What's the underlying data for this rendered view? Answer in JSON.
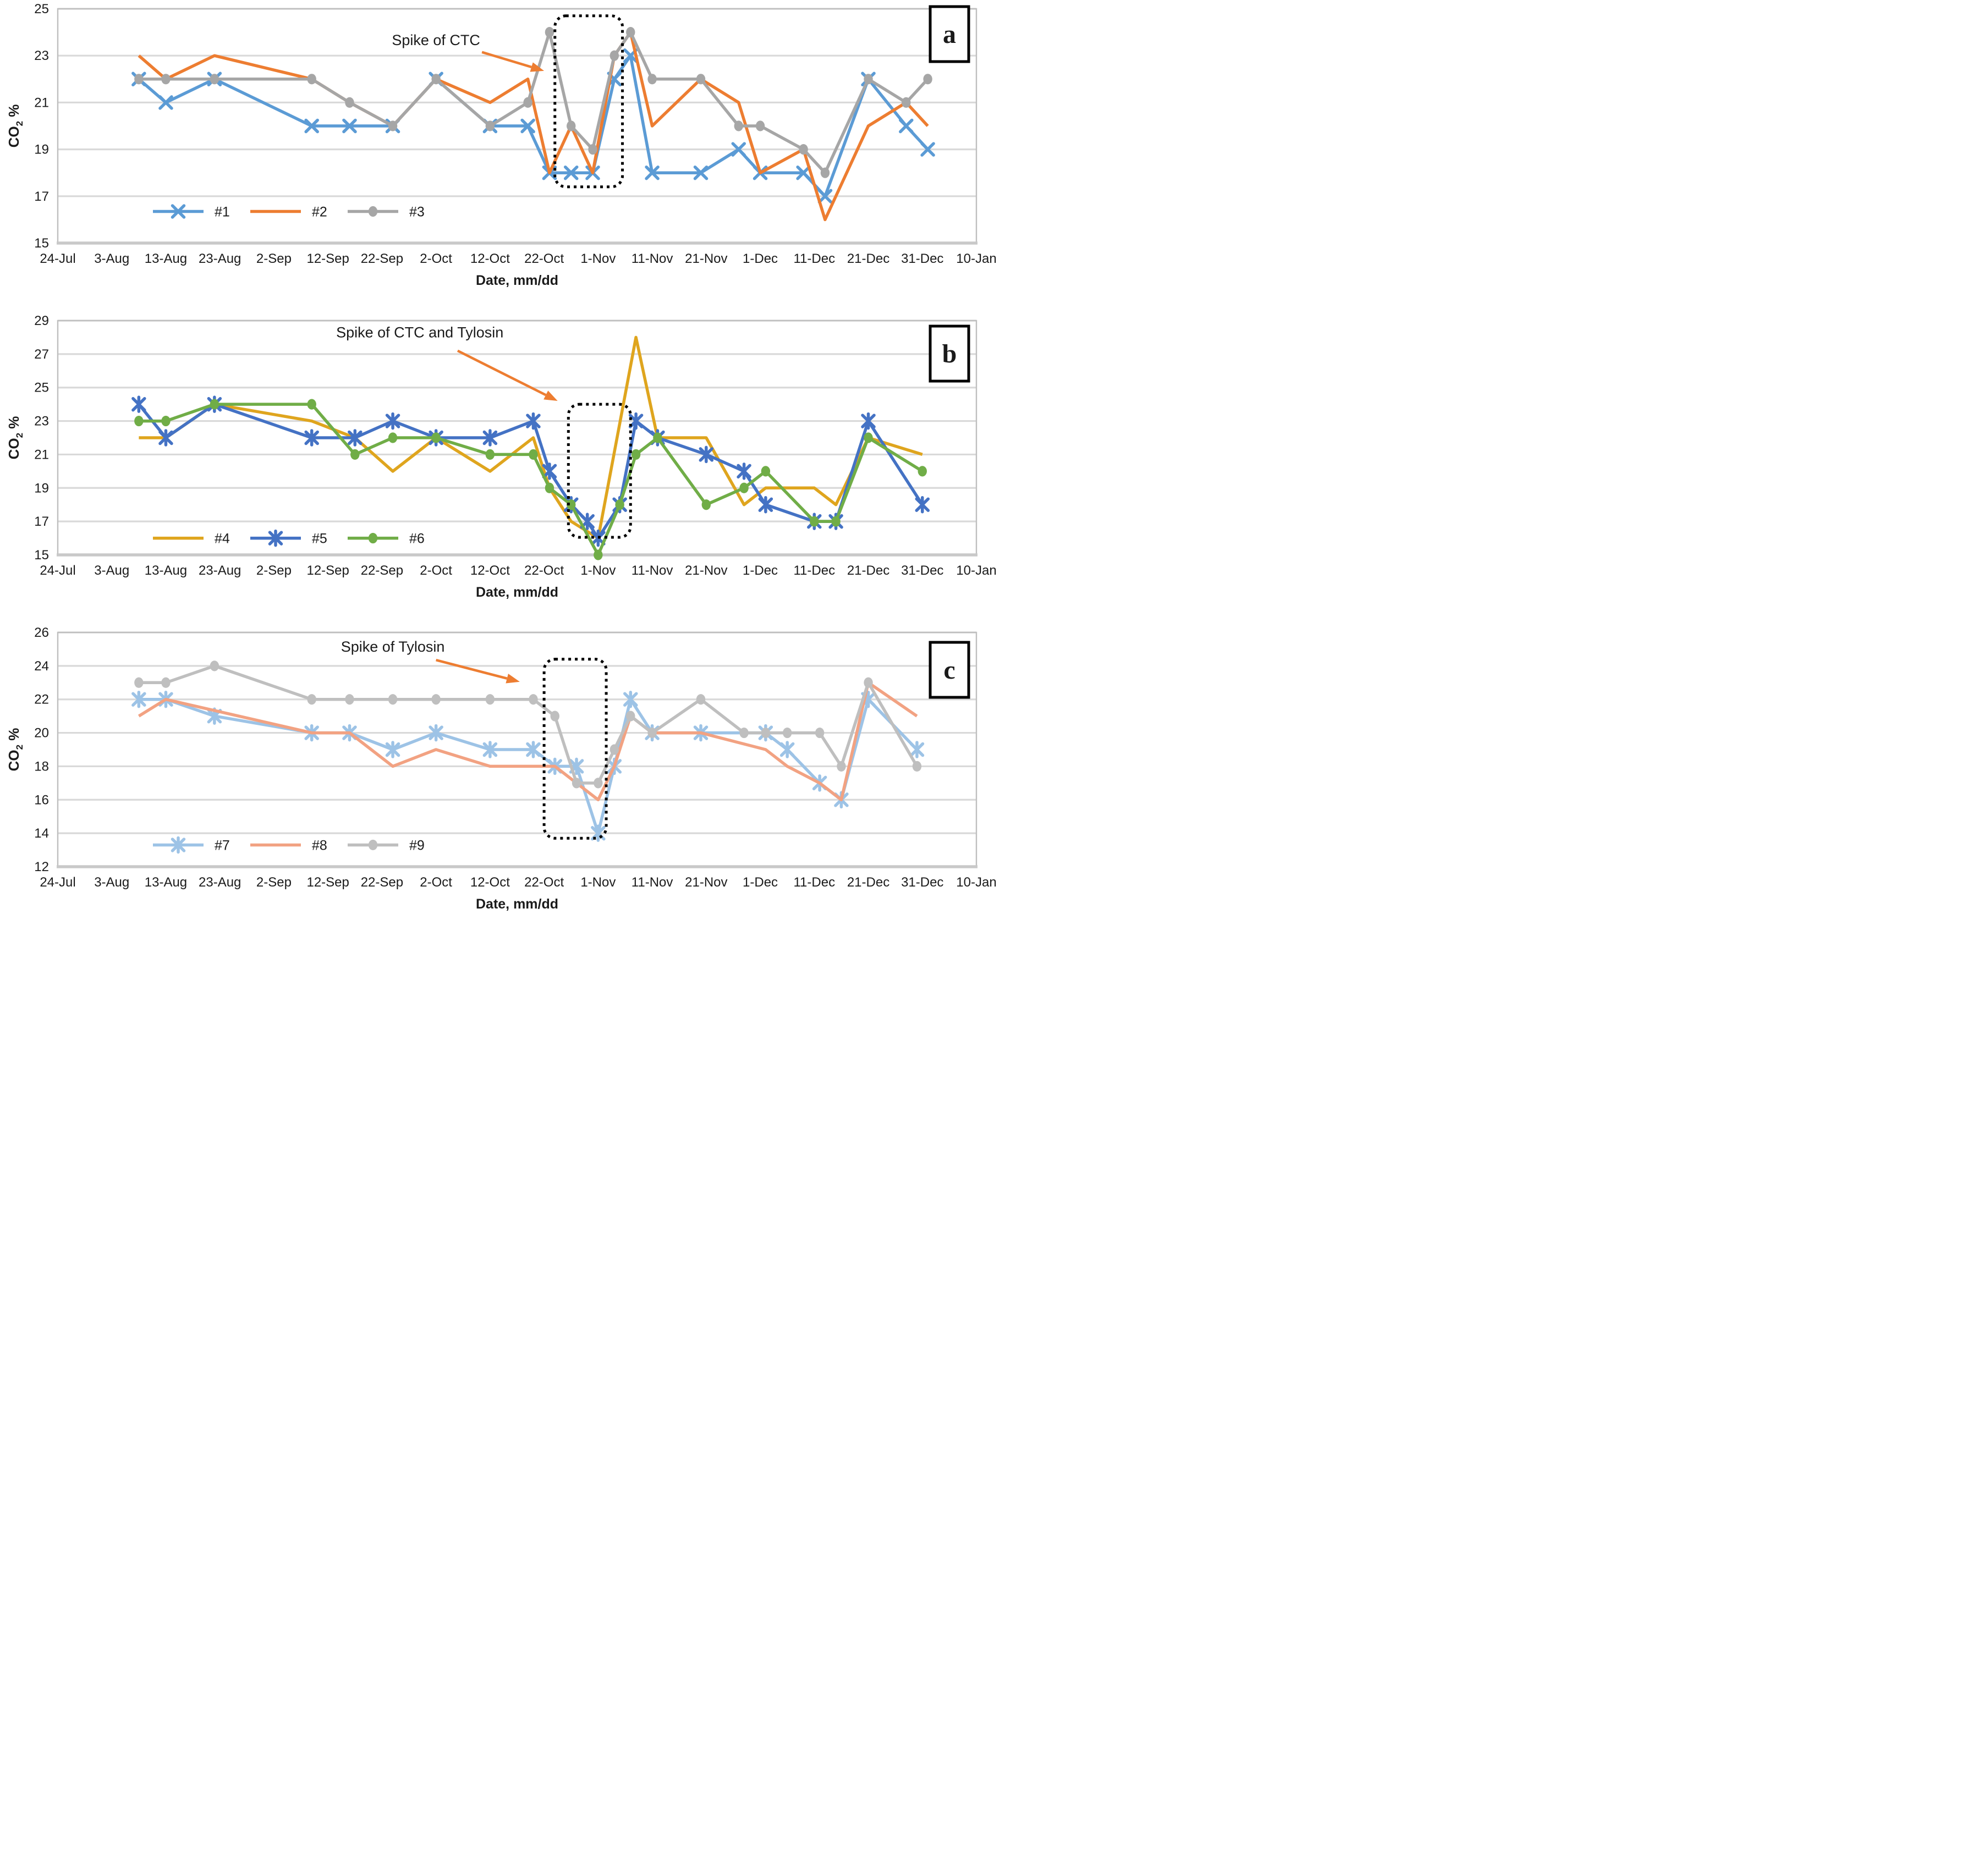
{
  "page": {
    "background": "#FFFFFF"
  },
  "x_axis": {
    "title": "Date, mm/dd",
    "range_days": [
      0,
      170
    ],
    "tick_days": [
      0,
      10,
      20,
      30,
      40,
      50,
      60,
      70,
      80,
      90,
      100,
      110,
      120,
      130,
      140,
      150,
      160,
      170
    ],
    "tick_labels": [
      "24-Jul",
      "3-Aug",
      "13-Aug",
      "23-Aug",
      "2-Sep",
      "12-Sep",
      "22-Sep",
      "2-Oct",
      "12-Oct",
      "22-Oct",
      "1-Nov",
      "11-Nov",
      "21-Nov",
      "1-Dec",
      "11-Dec",
      "21-Dec",
      "31-Dec",
      "10-Jan"
    ]
  },
  "y_axis": {
    "title_main": "CO",
    "title_sub": "2",
    "title_suffix": " %"
  },
  "style": {
    "gridline_color": "#D9D9D9",
    "plot_border_color": "#BFBFBF",
    "bottom_axis_color": "#C9C9C9",
    "text_color": "#1A1A1A",
    "annotation_arrow_color": "#ED7D31",
    "dotted_box_color": "#000000"
  },
  "chart_data": [
    {
      "panel_letter": "a",
      "type": "line",
      "ylim": [
        15,
        25
      ],
      "ytick_step": 2,
      "grid": "horizontal",
      "legend_position": "inside-bottom-left",
      "legend_y_value": 16.35,
      "series": [
        {
          "name": "#1",
          "color": "#5B9BD5",
          "marker": "x",
          "points": [
            [
              15,
              22
            ],
            [
              20,
              21
            ],
            [
              29,
              22
            ],
            [
              47,
              20
            ],
            [
              54,
              20
            ],
            [
              62,
              20
            ],
            [
              70,
              22
            ],
            [
              80,
              20
            ],
            [
              87,
              20
            ],
            [
              91,
              18
            ],
            [
              95,
              18
            ],
            [
              99,
              18
            ],
            [
              103,
              22
            ],
            [
              106,
              23
            ],
            [
              110,
              18
            ],
            [
              119,
              18
            ],
            [
              126,
              19
            ],
            [
              130,
              18
            ],
            [
              138,
              18
            ],
            [
              142,
              17
            ],
            [
              150,
              22
            ],
            [
              157,
              20
            ],
            [
              161,
              19
            ]
          ]
        },
        {
          "name": "#2",
          "color": "#ED7D31",
          "marker": "none",
          "points": [
            [
              15,
              23
            ],
            [
              20,
              22
            ],
            [
              29,
              23
            ],
            [
              47,
              22
            ],
            [
              54,
              21
            ],
            [
              62,
              20
            ],
            [
              70,
              22
            ],
            [
              80,
              21
            ],
            [
              87,
              22
            ],
            [
              91,
              18
            ],
            [
              95,
              20
            ],
            [
              99,
              18
            ],
            [
              103,
              23
            ],
            [
              106,
              24
            ],
            [
              110,
              20
            ],
            [
              119,
              22
            ],
            [
              126,
              21
            ],
            [
              130,
              18
            ],
            [
              138,
              19
            ],
            [
              142,
              16
            ],
            [
              150,
              20
            ],
            [
              157,
              21
            ],
            [
              161,
              20
            ]
          ]
        },
        {
          "name": "#3",
          "color": "#A6A6A6",
          "marker": "circle",
          "points": [
            [
              15,
              22
            ],
            [
              20,
              22
            ],
            [
              29,
              22
            ],
            [
              47,
              22
            ],
            [
              54,
              21
            ],
            [
              62,
              20
            ],
            [
              70,
              22
            ],
            [
              80,
              20
            ],
            [
              87,
              21
            ],
            [
              91,
              24
            ],
            [
              95,
              20
            ],
            [
              99,
              19
            ],
            [
              103,
              23
            ],
            [
              106,
              24
            ],
            [
              110,
              22
            ],
            [
              119,
              22
            ],
            [
              126,
              20
            ],
            [
              130,
              20
            ],
            [
              138,
              19
            ],
            [
              142,
              18
            ],
            [
              150,
              22
            ],
            [
              157,
              21
            ],
            [
              161,
              22
            ]
          ]
        }
      ],
      "annotation": {
        "text": "Spike of CTC",
        "text_at": [
          70,
          23.45
        ],
        "arrow_from": [
          78.5,
          23.15
        ],
        "arrow_to": [
          90,
          22.35
        ],
        "dotted_box": {
          "x1": 92,
          "y1": 17.4,
          "x2": 104.5,
          "y2": 24.7
        }
      }
    },
    {
      "panel_letter": "b",
      "type": "line",
      "ylim": [
        15,
        29
      ],
      "ytick_step": 2,
      "grid": "horizontal",
      "legend_position": "inside-bottom-left",
      "legend_y_value": 16.0,
      "series": [
        {
          "name": "#4",
          "color": "#DFA51E",
          "marker": "none",
          "points": [
            [
              15,
              22
            ],
            [
              20,
              22
            ],
            [
              29,
              24
            ],
            [
              47,
              23
            ],
            [
              55,
              22
            ],
            [
              62,
              20
            ],
            [
              70,
              22
            ],
            [
              80,
              20
            ],
            [
              88,
              22
            ],
            [
              91,
              19
            ],
            [
              95,
              17
            ],
            [
              100,
              16
            ],
            [
              107,
              28
            ],
            [
              111,
              22
            ],
            [
              120,
              22
            ],
            [
              127,
              18
            ],
            [
              131,
              19
            ],
            [
              140,
              19
            ],
            [
              144,
              18
            ],
            [
              150,
              22
            ],
            [
              160,
              21
            ]
          ]
        },
        {
          "name": "#5",
          "color": "#4472C4",
          "marker": "asterisk",
          "points": [
            [
              15,
              24
            ],
            [
              20,
              22
            ],
            [
              29,
              24
            ],
            [
              47,
              22
            ],
            [
              55,
              22
            ],
            [
              62,
              23
            ],
            [
              70,
              22
            ],
            [
              80,
              22
            ],
            [
              88,
              23
            ],
            [
              91,
              20
            ],
            [
              95,
              18
            ],
            [
              98,
              17
            ],
            [
              100,
              16
            ],
            [
              104,
              18
            ],
            [
              107,
              23
            ],
            [
              111,
              22
            ],
            [
              120,
              21
            ],
            [
              127,
              20
            ],
            [
              131,
              18
            ],
            [
              140,
              17
            ],
            [
              144,
              17
            ],
            [
              150,
              23
            ],
            [
              160,
              18
            ]
          ]
        },
        {
          "name": "#6",
          "color": "#70AD47",
          "marker": "circle",
          "points": [
            [
              15,
              23
            ],
            [
              20,
              23
            ],
            [
              29,
              24
            ],
            [
              47,
              24
            ],
            [
              55,
              21
            ],
            [
              62,
              22
            ],
            [
              70,
              22
            ],
            [
              80,
              21
            ],
            [
              88,
              21
            ],
            [
              91,
              19
            ],
            [
              95,
              18
            ],
            [
              100,
              15
            ],
            [
              104,
              18
            ],
            [
              107,
              21
            ],
            [
              111,
              22
            ],
            [
              120,
              18
            ],
            [
              127,
              19
            ],
            [
              131,
              20
            ],
            [
              140,
              17
            ],
            [
              144,
              17
            ],
            [
              150,
              22
            ],
            [
              160,
              20
            ]
          ]
        }
      ],
      "annotation": {
        "text": "Spike of CTC and Tylosin",
        "text_at": [
          67,
          28.0
        ],
        "arrow_from": [
          74,
          27.2
        ],
        "arrow_to": [
          92.5,
          24.2
        ],
        "dotted_box": {
          "x1": 94.5,
          "y1": 16.05,
          "x2": 106,
          "y2": 24.0
        }
      }
    },
    {
      "panel_letter": "c",
      "type": "line",
      "ylim": [
        12,
        26
      ],
      "ytick_step": 2,
      "grid": "horizontal",
      "legend_position": "inside-bottom-left",
      "legend_y_value": 13.3,
      "series": [
        {
          "name": "#7",
          "color": "#9DC3E6",
          "marker": "asterisk",
          "points": [
            [
              15,
              22
            ],
            [
              20,
              22
            ],
            [
              29,
              21
            ],
            [
              47,
              20
            ],
            [
              54,
              20
            ],
            [
              62,
              19
            ],
            [
              70,
              20
            ],
            [
              80,
              19
            ],
            [
              88,
              19
            ],
            [
              92,
              18
            ],
            [
              96,
              18
            ],
            [
              100,
              14
            ],
            [
              103,
              18
            ],
            [
              106,
              22
            ],
            [
              110,
              20
            ],
            [
              119,
              20
            ],
            [
              131,
              20
            ],
            [
              135,
              19
            ],
            [
              141,
              17
            ],
            [
              145,
              16
            ],
            [
              150,
              22
            ],
            [
              159,
              19
            ]
          ]
        },
        {
          "name": "#8",
          "color": "#F2A282",
          "marker": "none",
          "points": [
            [
              15,
              21
            ],
            [
              20,
              22
            ],
            [
              47,
              20
            ],
            [
              54,
              20
            ],
            [
              62,
              18
            ],
            [
              70,
              19
            ],
            [
              80,
              18
            ],
            [
              92,
              18
            ],
            [
              96,
              17
            ],
            [
              100,
              16
            ],
            [
              103,
              18
            ],
            [
              106,
              21
            ],
            [
              110,
              20
            ],
            [
              119,
              20
            ],
            [
              131,
              19
            ],
            [
              135,
              18
            ],
            [
              141,
              17
            ],
            [
              145,
              16
            ],
            [
              150,
              23
            ],
            [
              159,
              21
            ]
          ]
        },
        {
          "name": "#9",
          "color": "#BFBFBF",
          "marker": "circle",
          "points": [
            [
              15,
              23
            ],
            [
              20,
              23
            ],
            [
              29,
              24
            ],
            [
              47,
              22
            ],
            [
              54,
              22
            ],
            [
              62,
              22
            ],
            [
              70,
              22
            ],
            [
              80,
              22
            ],
            [
              88,
              22
            ],
            [
              92,
              21
            ],
            [
              96,
              17
            ],
            [
              100,
              17
            ],
            [
              103,
              19
            ],
            [
              106,
              21
            ],
            [
              110,
              20
            ],
            [
              119,
              22
            ],
            [
              127,
              20
            ],
            [
              131,
              20
            ],
            [
              135,
              20
            ],
            [
              141,
              20
            ],
            [
              145,
              18
            ],
            [
              150,
              23
            ],
            [
              159,
              18
            ]
          ]
        }
      ],
      "annotation": {
        "text": "Spike of Tylosin",
        "text_at": [
          62,
          24.85
        ],
        "arrow_from": [
          70,
          24.35
        ],
        "arrow_to": [
          85.5,
          23.05
        ],
        "dotted_box": {
          "x1": 90,
          "y1": 13.7,
          "x2": 101.5,
          "y2": 24.4
        }
      }
    }
  ]
}
